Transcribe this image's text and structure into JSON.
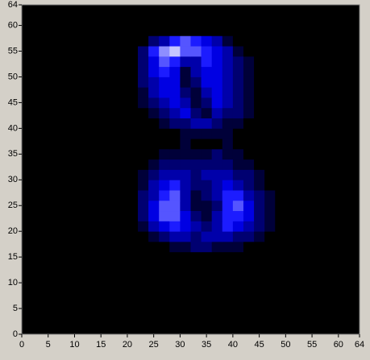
{
  "chart_data": {
    "type": "heatmap",
    "xlim": [
      0,
      64
    ],
    "ylim": [
      0,
      64
    ],
    "xticks": [
      0,
      5,
      10,
      15,
      20,
      25,
      30,
      35,
      40,
      45,
      50,
      55,
      60,
      64
    ],
    "yticks": [
      0,
      5,
      10,
      15,
      20,
      25,
      30,
      35,
      40,
      45,
      50,
      55,
      60,
      64
    ],
    "zlim": [
      0,
      9
    ],
    "colors": [
      "#000000",
      "#0000ff",
      "#ffffff"
    ],
    "z": [
      [
        0,
        0,
        0,
        0,
        0,
        0,
        0,
        0,
        0,
        0,
        0,
        0,
        0,
        0,
        0,
        0,
        0,
        0,
        0,
        0,
        0,
        0,
        0,
        0,
        0,
        0,
        0,
        0,
        0,
        0,
        0,
        0
      ],
      [
        0,
        0,
        0,
        0,
        0,
        0,
        0,
        0,
        0,
        0,
        0,
        0,
        0,
        0,
        0,
        0,
        0,
        0,
        0,
        0,
        0,
        0,
        0,
        0,
        0,
        0,
        0,
        0,
        0,
        0,
        0,
        0
      ],
      [
        0,
        0,
        0,
        0,
        0,
        0,
        0,
        0,
        0,
        0,
        0,
        0,
        0,
        0,
        0,
        0,
        0,
        0,
        0,
        0,
        0,
        0,
        0,
        0,
        0,
        0,
        0,
        0,
        0,
        0,
        0,
        0
      ],
      [
        0,
        0,
        0,
        0,
        0,
        0,
        0,
        0,
        0,
        0,
        0,
        0,
        0,
        0,
        0,
        0,
        0,
        0,
        0,
        0,
        0,
        0,
        0,
        0,
        0,
        0,
        0,
        0,
        0,
        0,
        0,
        0
      ],
      [
        0,
        0,
        0,
        0,
        0,
        0,
        0,
        0,
        0,
        0,
        0,
        0,
        0,
        0,
        0,
        0,
        0,
        0,
        0,
        0,
        0,
        0,
        0,
        0,
        0,
        0,
        0,
        0,
        0,
        0,
        0,
        0
      ],
      [
        0,
        0,
        0,
        0,
        0,
        0,
        0,
        0,
        0,
        0,
        0,
        0,
        0,
        0,
        0,
        0,
        0,
        0,
        0,
        0,
        0,
        0,
        0,
        0,
        0,
        0,
        0,
        0,
        0,
        0,
        0,
        0
      ],
      [
        0,
        0,
        0,
        0,
        0,
        0,
        0,
        0,
        0,
        0,
        0,
        0,
        0,
        0,
        0,
        0,
        0,
        0,
        0,
        0,
        0,
        0,
        0,
        0,
        0,
        0,
        0,
        0,
        0,
        0,
        0,
        0
      ],
      [
        0,
        0,
        0,
        0,
        0,
        0,
        0,
        0,
        0,
        0,
        0,
        0,
        0,
        0,
        0,
        0,
        0,
        0,
        0,
        0,
        0,
        0,
        0,
        0,
        0,
        0,
        0,
        0,
        0,
        0,
        0,
        0
      ],
      [
        0,
        0,
        0,
        0,
        0,
        0,
        0,
        0,
        0,
        0,
        0,
        0,
        0,
        0,
        1,
        1,
        2,
        2,
        1,
        1,
        1,
        0,
        0,
        0,
        0,
        0,
        0,
        0,
        0,
        0,
        0,
        0
      ],
      [
        0,
        0,
        0,
        0,
        0,
        0,
        0,
        0,
        0,
        0,
        0,
        0,
        1,
        2,
        3,
        3,
        2,
        3,
        3,
        3,
        2,
        2,
        1,
        0,
        0,
        0,
        0,
        0,
        0,
        0,
        0,
        0
      ],
      [
        0,
        0,
        0,
        0,
        0,
        0,
        0,
        0,
        0,
        0,
        0,
        1,
        3,
        4,
        5,
        4,
        3,
        2,
        3,
        5,
        4,
        3,
        2,
        1,
        0,
        0,
        0,
        0,
        0,
        0,
        0,
        0
      ],
      [
        0,
        0,
        0,
        0,
        0,
        0,
        0,
        0,
        0,
        0,
        0,
        2,
        4,
        6,
        6,
        4,
        2,
        1,
        3,
        5,
        5,
        4,
        2,
        1,
        0,
        0,
        0,
        0,
        0,
        0,
        0,
        0
      ],
      [
        0,
        0,
        0,
        0,
        0,
        0,
        0,
        0,
        0,
        0,
        0,
        2,
        4,
        6,
        6,
        3,
        1,
        1,
        2,
        5,
        6,
        4,
        2,
        1,
        0,
        0,
        0,
        0,
        0,
        0,
        0,
        0
      ],
      [
        0,
        0,
        0,
        0,
        0,
        0,
        0,
        0,
        0,
        0,
        0,
        2,
        3,
        5,
        6,
        3,
        1,
        2,
        3,
        5,
        5,
        3,
        2,
        1,
        0,
        0,
        0,
        0,
        0,
        0,
        0,
        0
      ],
      [
        0,
        0,
        0,
        0,
        0,
        0,
        0,
        0,
        0,
        0,
        0,
        1,
        3,
        4,
        5,
        3,
        2,
        2,
        3,
        4,
        3,
        2,
        1,
        0,
        0,
        0,
        0,
        0,
        0,
        0,
        0,
        0
      ],
      [
        0,
        0,
        0,
        0,
        0,
        0,
        0,
        0,
        0,
        0,
        0,
        1,
        2,
        3,
        3,
        3,
        2,
        3,
        3,
        3,
        2,
        2,
        1,
        0,
        0,
        0,
        0,
        0,
        0,
        0,
        0,
        0
      ],
      [
        0,
        0,
        0,
        0,
        0,
        0,
        0,
        0,
        0,
        0,
        0,
        0,
        1,
        2,
        2,
        2,
        2,
        2,
        2,
        2,
        1,
        1,
        0,
        0,
        0,
        0,
        0,
        0,
        0,
        0,
        0,
        0
      ],
      [
        0,
        0,
        0,
        0,
        0,
        0,
        0,
        0,
        0,
        0,
        0,
        0,
        0,
        1,
        1,
        1,
        1,
        1,
        2,
        1,
        1,
        0,
        0,
        0,
        0,
        0,
        0,
        0,
        0,
        0,
        0,
        0
      ],
      [
        0,
        0,
        0,
        0,
        0,
        0,
        0,
        0,
        0,
        0,
        0,
        0,
        0,
        0,
        0,
        1,
        0,
        0,
        0,
        1,
        0,
        0,
        0,
        0,
        0,
        0,
        0,
        0,
        0,
        0,
        0,
        0
      ],
      [
        0,
        0,
        0,
        0,
        0,
        0,
        0,
        0,
        0,
        0,
        0,
        0,
        0,
        0,
        0,
        1,
        1,
        1,
        1,
        1,
        0,
        0,
        0,
        0,
        0,
        0,
        0,
        0,
        0,
        0,
        0,
        0
      ],
      [
        0,
        0,
        0,
        0,
        0,
        0,
        0,
        0,
        0,
        0,
        0,
        0,
        0,
        1,
        2,
        2,
        3,
        3,
        2,
        1,
        1,
        0,
        0,
        0,
        0,
        0,
        0,
        0,
        0,
        0,
        0,
        0
      ],
      [
        0,
        0,
        0,
        0,
        0,
        0,
        0,
        0,
        0,
        0,
        0,
        0,
        1,
        2,
        3,
        4,
        2,
        1,
        3,
        2,
        2,
        1,
        0,
        0,
        0,
        0,
        0,
        0,
        0,
        0,
        0,
        0
      ],
      [
        0,
        0,
        0,
        0,
        0,
        0,
        0,
        0,
        0,
        0,
        0,
        1,
        2,
        3,
        4,
        3,
        1,
        2,
        4,
        3,
        2,
        1,
        0,
        0,
        0,
        0,
        0,
        0,
        0,
        0,
        0,
        0
      ],
      [
        0,
        0,
        0,
        0,
        0,
        0,
        0,
        0,
        0,
        0,
        0,
        1,
        3,
        4,
        4,
        2,
        1,
        3,
        4,
        3,
        2,
        1,
        0,
        0,
        0,
        0,
        0,
        0,
        0,
        0,
        0,
        0
      ],
      [
        0,
        0,
        0,
        0,
        0,
        0,
        0,
        0,
        0,
        0,
        0,
        2,
        3,
        4,
        4,
        1,
        2,
        4,
        4,
        3,
        2,
        1,
        0,
        0,
        0,
        0,
        0,
        0,
        0,
        0,
        0,
        0
      ],
      [
        0,
        0,
        0,
        0,
        0,
        0,
        0,
        0,
        0,
        0,
        0,
        2,
        4,
        5,
        4,
        1,
        3,
        4,
        4,
        3,
        2,
        1,
        0,
        0,
        0,
        0,
        0,
        0,
        0,
        0,
        0,
        0
      ],
      [
        0,
        0,
        0,
        0,
        0,
        0,
        0,
        0,
        0,
        0,
        0,
        2,
        4,
        6,
        5,
        3,
        3,
        5,
        4,
        3,
        2,
        1,
        0,
        0,
        0,
        0,
        0,
        0,
        0,
        0,
        0,
        0
      ],
      [
        0,
        0,
        0,
        0,
        0,
        0,
        0,
        0,
        0,
        0,
        0,
        2,
        5,
        7,
        8,
        6,
        6,
        5,
        4,
        3,
        1,
        0,
        0,
        0,
        0,
        0,
        0,
        0,
        0,
        0,
        0,
        0
      ],
      [
        0,
        0,
        0,
        0,
        0,
        0,
        0,
        0,
        0,
        0,
        0,
        0,
        2,
        3,
        5,
        6,
        5,
        4,
        3,
        1,
        0,
        0,
        0,
        0,
        0,
        0,
        0,
        0,
        0,
        0,
        0,
        0
      ],
      [
        0,
        0,
        0,
        0,
        0,
        0,
        0,
        0,
        0,
        0,
        0,
        0,
        0,
        0,
        0,
        0,
        0,
        0,
        0,
        0,
        0,
        0,
        0,
        0,
        0,
        0,
        0,
        0,
        0,
        0,
        0,
        0
      ],
      [
        0,
        0,
        0,
        0,
        0,
        0,
        0,
        0,
        0,
        0,
        0,
        0,
        0,
        0,
        0,
        0,
        0,
        0,
        0,
        0,
        0,
        0,
        0,
        0,
        0,
        0,
        0,
        0,
        0,
        0,
        0,
        0
      ],
      [
        0,
        0,
        0,
        0,
        0,
        0,
        0,
        0,
        0,
        0,
        0,
        0,
        0,
        0,
        0,
        0,
        0,
        0,
        0,
        0,
        0,
        0,
        0,
        0,
        0,
        0,
        0,
        0,
        0,
        0,
        0,
        0
      ]
    ]
  }
}
